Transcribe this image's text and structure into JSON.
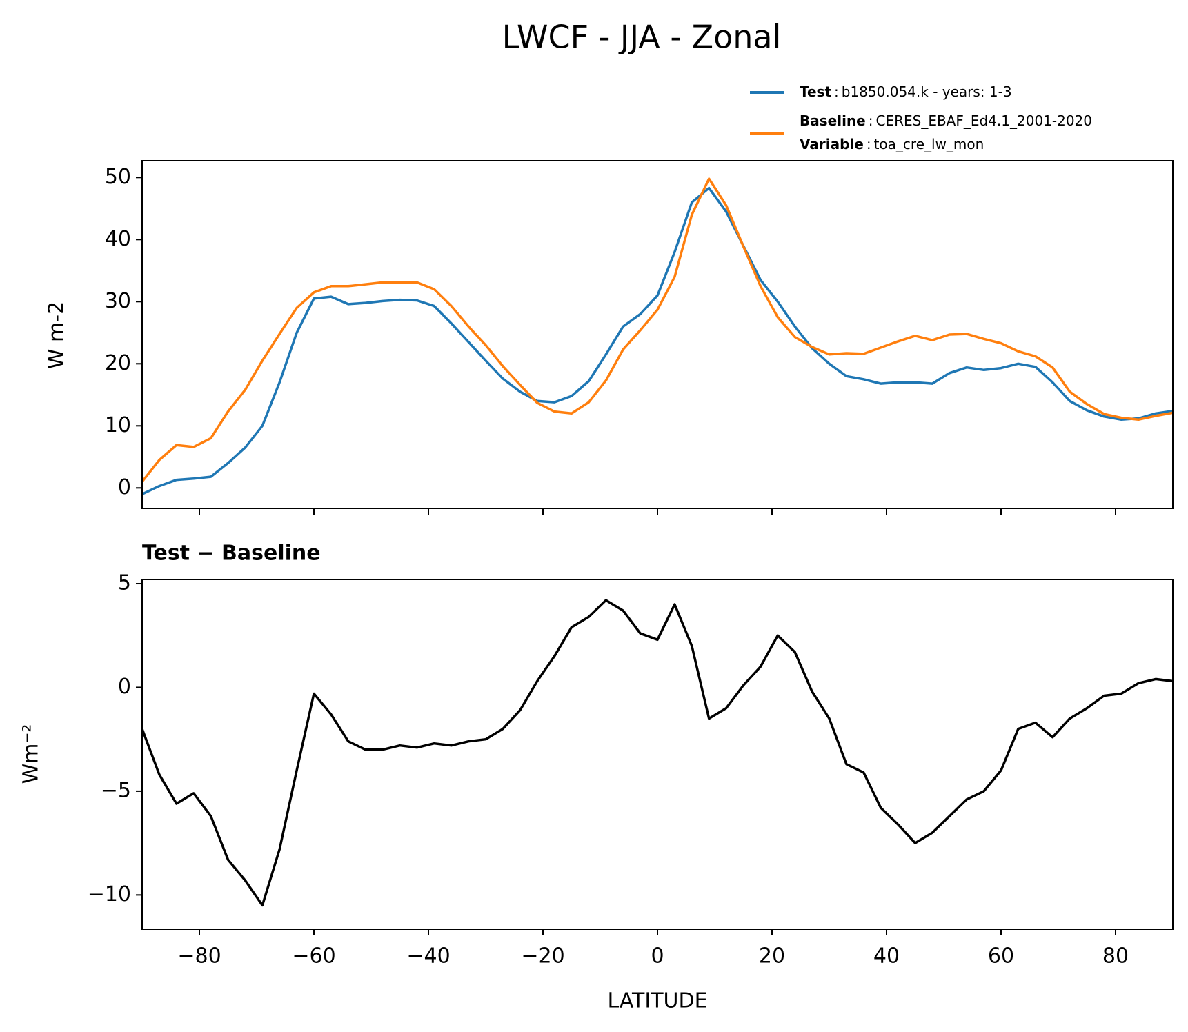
{
  "chart_data": [
    {
      "type": "line",
      "title": "LWCF - JJA - Zonal",
      "ylabel": "W m-2",
      "x": [
        -90,
        -87,
        -84,
        -81,
        -78,
        -75,
        -72,
        -69,
        -66,
        -63,
        -60,
        -57,
        -54,
        -51,
        -48,
        -45,
        -42,
        -39,
        -36,
        -33,
        -30,
        -27,
        -24,
        -21,
        -18,
        -15,
        -12,
        -9,
        -6,
        -3,
        0,
        3,
        6,
        9,
        12,
        15,
        18,
        21,
        24,
        27,
        30,
        33,
        36,
        39,
        42,
        45,
        48,
        51,
        54,
        57,
        60,
        63,
        66,
        69,
        72,
        75,
        78,
        81,
        84,
        87,
        90
      ],
      "series": [
        {
          "name": "Test",
          "description": "b1850.054.k - years: 1-3",
          "color": "#1f77b4",
          "values": [
            -1,
            0.3,
            1.3,
            1.5,
            1.8,
            4,
            6.5,
            10,
            17,
            25,
            30.5,
            30.8,
            29.6,
            29.8,
            30.1,
            30.3,
            30.2,
            29.3,
            26.5,
            23.5,
            20.5,
            17.6,
            15.5,
            14,
            13.8,
            14.8,
            17.2,
            21.5,
            26,
            28,
            31,
            38,
            46,
            48.3,
            44.5,
            39,
            33.5,
            30,
            26,
            22.5,
            20,
            18,
            17.5,
            16.8,
            17,
            17,
            16.8,
            18.5,
            19.4,
            19,
            19.3,
            20,
            19.5,
            17,
            14,
            12.5,
            11.5,
            11,
            11.2,
            12,
            12.4
          ]
        },
        {
          "name": "Baseline",
          "description": "CERES_EBAF_Ed4.1_2001-2020",
          "color": "#ff7f0e",
          "values": [
            1,
            4.5,
            6.9,
            6.6,
            8,
            12.3,
            15.8,
            20.5,
            24.8,
            29,
            31.5,
            32.5,
            32.5,
            32.8,
            33.1,
            33.1,
            33.1,
            32,
            29.3,
            26,
            23,
            19.6,
            16.6,
            13.7,
            12.3,
            12,
            13.8,
            17.3,
            22.3,
            25.4,
            28.7,
            34,
            44,
            49.8,
            45.5,
            38.9,
            32.5,
            27.5,
            24.3,
            22.7,
            21.5,
            21.7,
            21.6,
            22.6,
            23.6,
            24.5,
            23.8,
            24.7,
            24.8,
            24,
            23.3,
            22,
            21.2,
            19.4,
            15.5,
            13.5,
            11.9,
            11.3,
            11,
            11.6,
            12.1
          ]
        }
      ],
      "legend_separator": ":",
      "legend_note": {
        "label": "Variable",
        "text": "toa_cre_lw_mon"
      },
      "xlim": [
        -90,
        90
      ],
      "xticks": [
        -80,
        -60,
        -40,
        -20,
        0,
        20,
        40,
        60,
        80
      ],
      "show_xtick_labels": false,
      "ylim": [
        -3.3,
        52.7
      ],
      "yticks": [
        0,
        10,
        20,
        30,
        40,
        50
      ]
    },
    {
      "type": "line",
      "subtitle": "Test − Baseline",
      "ylabel": "Wm⁻²",
      "xlabel": "LATITUDE",
      "x": [
        -90,
        -87,
        -84,
        -81,
        -78,
        -75,
        -72,
        -69,
        -66,
        -63,
        -60,
        -57,
        -54,
        -51,
        -48,
        -45,
        -42,
        -39,
        -36,
        -33,
        -30,
        -27,
        -24,
        -21,
        -18,
        -15,
        -12,
        -9,
        -6,
        -3,
        0,
        3,
        6,
        9,
        12,
        15,
        18,
        21,
        24,
        27,
        30,
        33,
        36,
        39,
        42,
        45,
        48,
        51,
        54,
        57,
        60,
        63,
        66,
        69,
        72,
        75,
        78,
        81,
        84,
        87,
        90
      ],
      "series": [
        {
          "name": "Test − Baseline",
          "color": "#000000",
          "values": [
            -2,
            -4.2,
            -5.6,
            -5.1,
            -6.2,
            -8.3,
            -9.3,
            -10.5,
            -7.8,
            -4,
            -0.3,
            -1.3,
            -2.6,
            -3,
            -3,
            -2.8,
            -2.9,
            -2.7,
            -2.8,
            -2.6,
            -2.5,
            -2,
            -1.1,
            0.3,
            1.5,
            2.9,
            3.4,
            4.2,
            3.7,
            2.6,
            2.3,
            4,
            2,
            -1.5,
            -1,
            0.1,
            1,
            2.5,
            1.7,
            -0.2,
            -1.5,
            -3.7,
            -4.1,
            -5.8,
            -6.6,
            -7.5,
            -7,
            -6.2,
            -5.4,
            -5,
            -4,
            -2,
            -1.7,
            -2.4,
            -1.5,
            -1,
            -0.4,
            -0.3,
            0.2,
            0.4,
            0.3
          ]
        }
      ],
      "xlim": [
        -90,
        90
      ],
      "xticks": [
        {
          "value": -80,
          "label": "−80"
        },
        {
          "value": -60,
          "label": "−60"
        },
        {
          "value": -40,
          "label": "−40"
        },
        {
          "value": -20,
          "label": "−20"
        },
        0,
        20,
        40,
        60,
        80
      ],
      "show_xtick_labels": true,
      "ylim": [
        -11.65,
        5.2
      ],
      "yticks": [
        {
          "value": -10,
          "label": "−10"
        },
        {
          "value": -5,
          "label": "−5"
        },
        0,
        5
      ]
    }
  ]
}
